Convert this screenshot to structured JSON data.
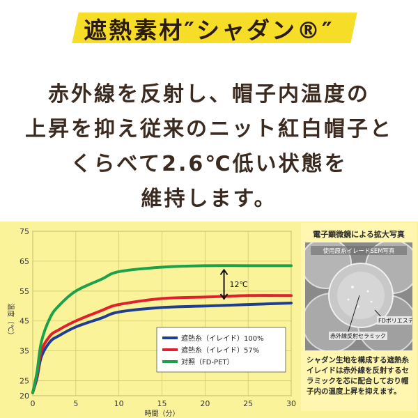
{
  "title": "遮熱素材″シャダン®″",
  "body_lines": [
    "赤外線を反射し、帽子内温度の",
    "上昇を抑え従来のニット紅白帽子と",
    "くらべて2.6℃低い状態を",
    "維持します。"
  ],
  "colors": {
    "accent_yellow": "#f6de28",
    "panel": "#fbf39a",
    "series_blue": "#1f3e93",
    "series_red": "#e0202c",
    "series_green": "#1aa14a"
  },
  "chart_data": {
    "type": "line",
    "xlabel": "時間（分）",
    "ylabel": "温度（℃）",
    "xlim": [
      0,
      30
    ],
    "ylim": [
      20,
      75
    ],
    "xticks": [
      0,
      5,
      10,
      15,
      20,
      25,
      30
    ],
    "yticks": [
      20,
      25,
      35,
      45,
      55,
      65,
      75
    ],
    "grid": true,
    "legend_position": "bottom-right",
    "annotation": "12℃",
    "series": [
      {
        "name": "遮熱糸（イレイド）100%",
        "color": "#1f3e93",
        "x": [
          0,
          0.5,
          1,
          2,
          3,
          5,
          8,
          10,
          15,
          20,
          25,
          30
        ],
        "y": [
          21,
          26,
          33,
          38,
          40,
          43,
          46,
          48,
          49.5,
          50,
          50.5,
          51
        ]
      },
      {
        "name": "遮熱糸（イレイド）57%",
        "color": "#e0202c",
        "x": [
          0,
          0.5,
          1,
          2,
          3,
          5,
          8,
          10,
          15,
          20,
          25,
          30
        ],
        "y": [
          21,
          27,
          35,
          40,
          42,
          45,
          48.5,
          50.5,
          52.5,
          53,
          53.5,
          53.5
        ]
      },
      {
        "name": "対照（FD-PET）",
        "color": "#1aa14a",
        "x": [
          0,
          0.5,
          1,
          2,
          3,
          5,
          8,
          10,
          15,
          20,
          25,
          30
        ],
        "y": [
          21,
          28,
          38,
          46,
          50,
          55,
          59,
          61.5,
          63,
          63.5,
          63.5,
          63.5
        ]
      }
    ]
  },
  "sem": {
    "title": "電子顕微鏡による拡大写真",
    "inner_label": "使用原糸イレードSEM写真",
    "label_fd": "FDポリエステル",
    "label_ceramic": "赤外線反射セラミック",
    "caption": "シャダン生地を構成する遮熱糸イレイドは赤外線を反射するセラミックを芯に配合しており帽子内の温度上昇を抑えます。"
  }
}
